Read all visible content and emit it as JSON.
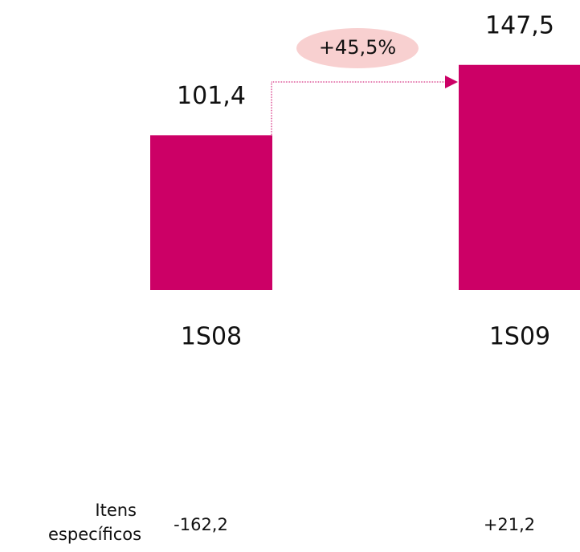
{
  "chart_data": {
    "type": "bar",
    "categories": [
      "1S08",
      "1S09"
    ],
    "values": [
      101.4,
      147.5
    ],
    "value_labels": [
      "101,4",
      "147,5"
    ],
    "color": "#cc0066",
    "annotation": "+45,5%",
    "specific_items": {
      "label": "Itens específicos",
      "values": [
        -162.2,
        21.2
      ],
      "value_labels": [
        "-162,2",
        "+21,2"
      ]
    }
  }
}
